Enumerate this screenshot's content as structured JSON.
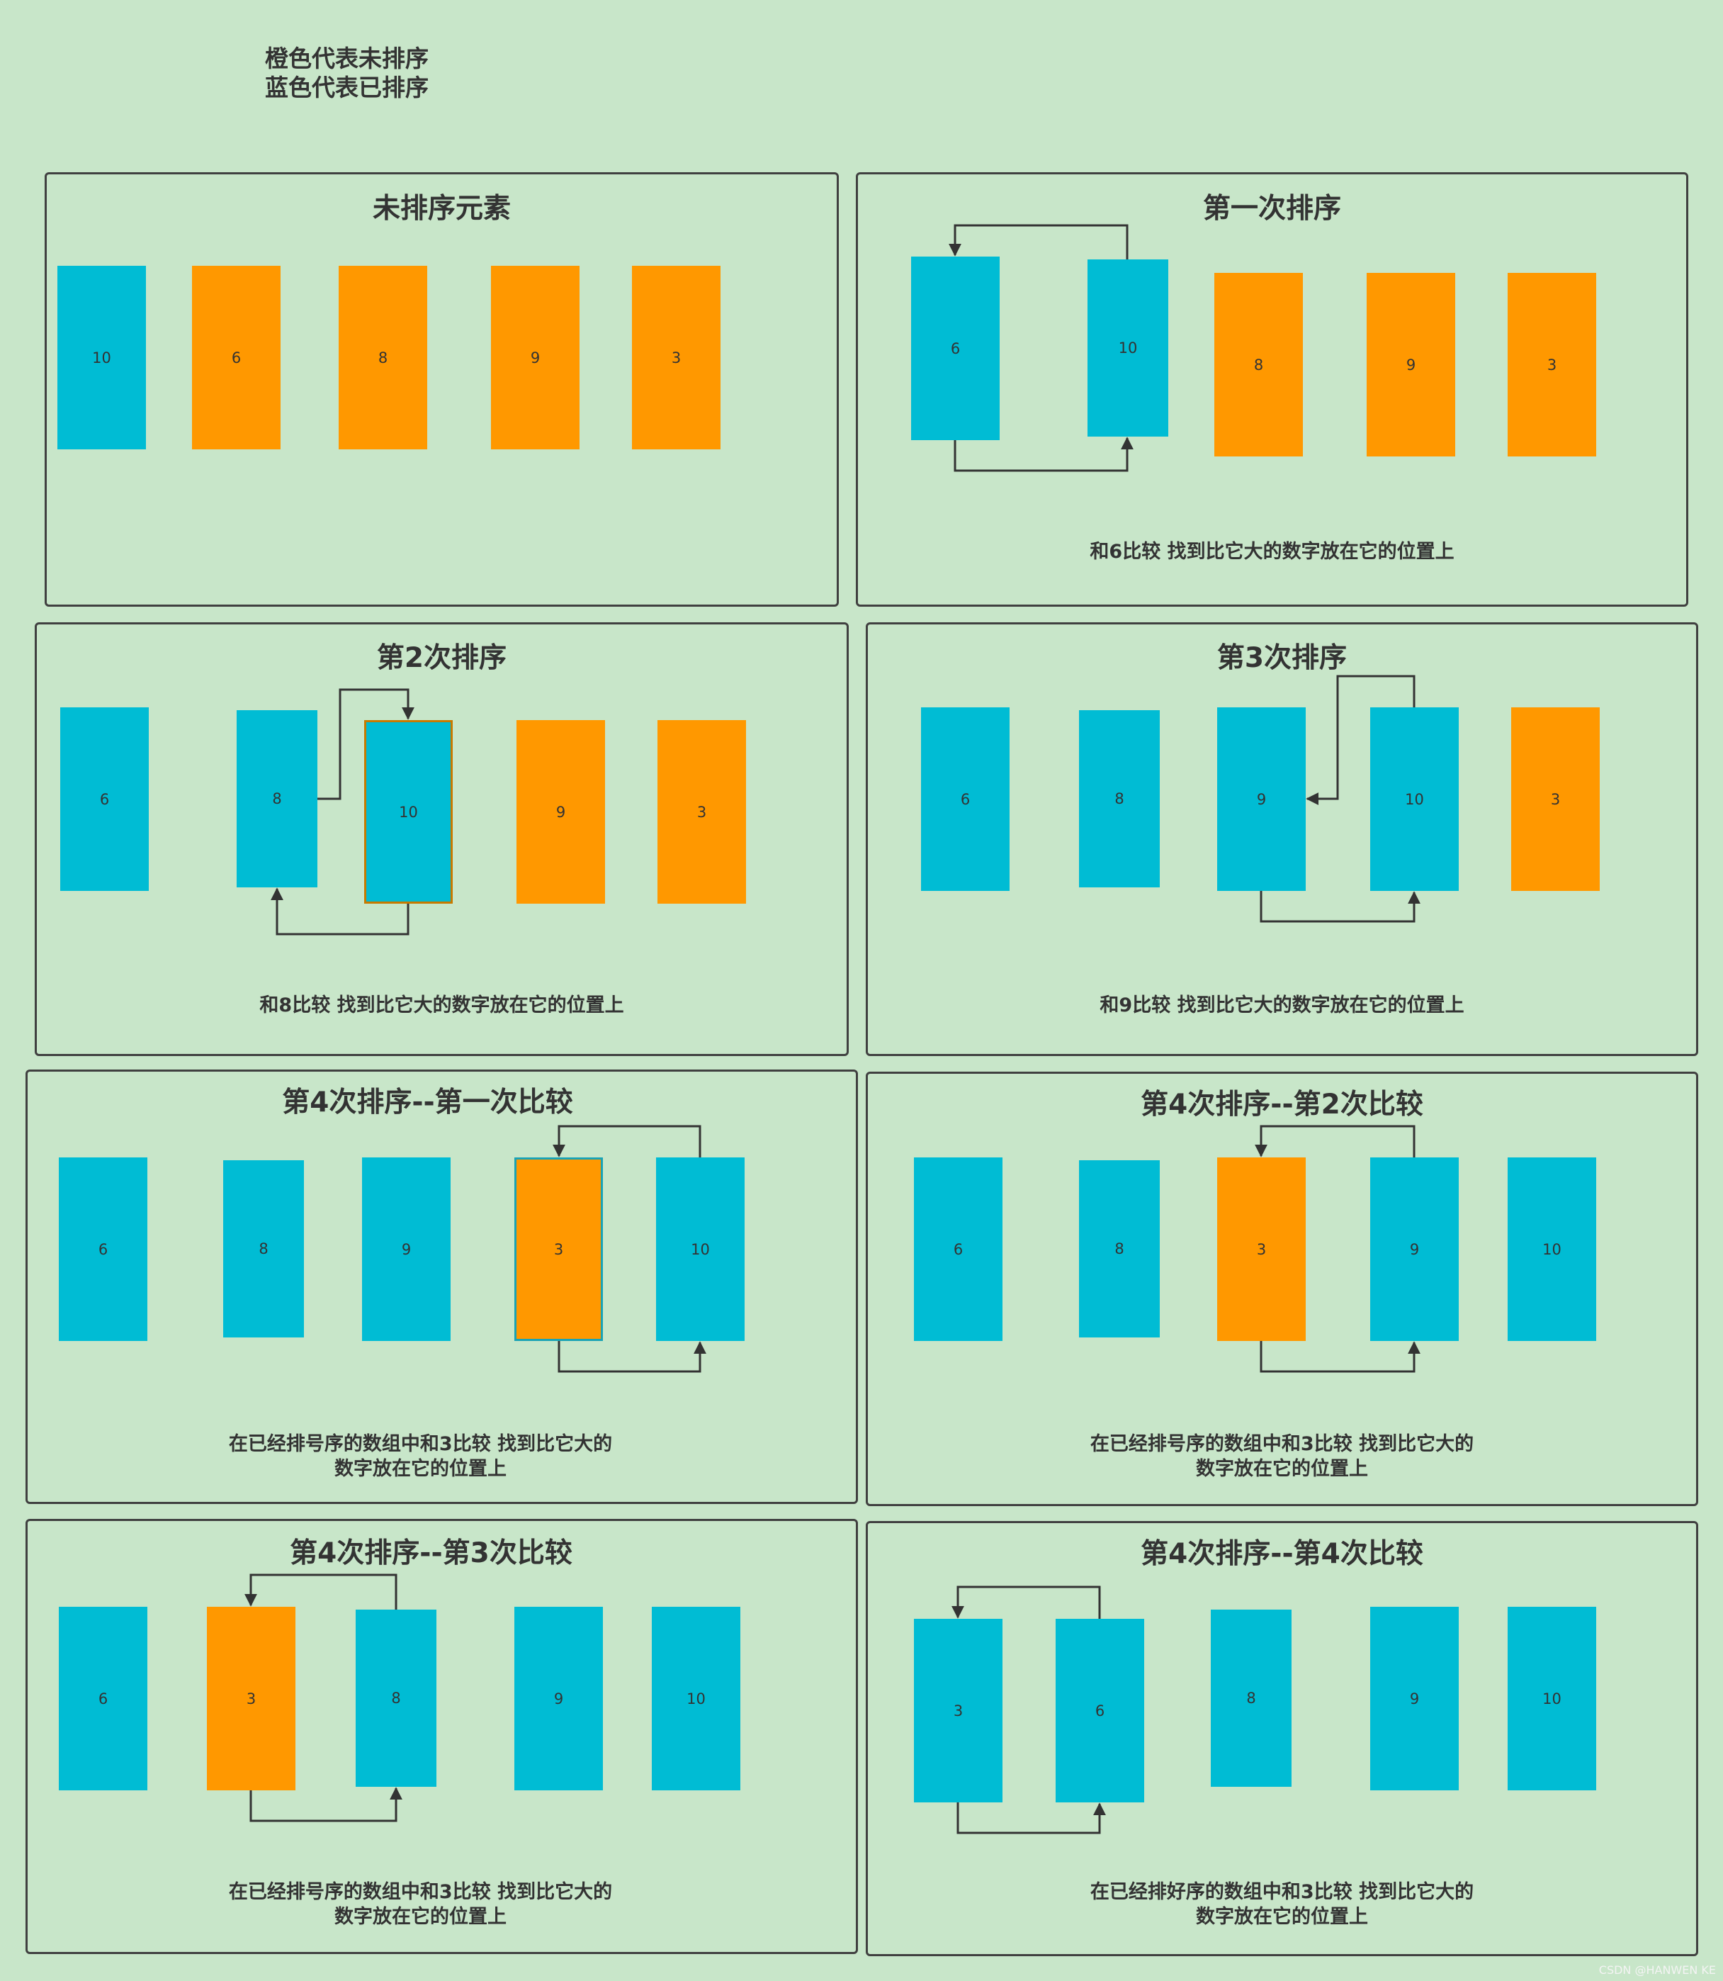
{
  "legend": {
    "line1": "橙色代表未排序",
    "line2": "蓝色代表已排序"
  },
  "colors": {
    "background": "#c8e6c9",
    "sorted": "#00bcd4",
    "unsorted": "#ff9800",
    "border": "#404040"
  },
  "panels": [
    {
      "title": "未排序元素",
      "caption": "",
      "boxes": [
        {
          "label": "10",
          "state": "sorted"
        },
        {
          "label": "6",
          "state": "unsorted"
        },
        {
          "label": "8",
          "state": "unsorted"
        },
        {
          "label": "9",
          "state": "unsorted"
        },
        {
          "label": "3",
          "state": "unsorted"
        }
      ]
    },
    {
      "title": "第一次排序",
      "caption": "和6比较 找到比它大的数字放在它的位置上",
      "boxes": [
        {
          "label": "6",
          "state": "sorted"
        },
        {
          "label": "10",
          "state": "sorted"
        },
        {
          "label": "8",
          "state": "unsorted"
        },
        {
          "label": "9",
          "state": "unsorted"
        },
        {
          "label": "3",
          "state": "unsorted"
        }
      ]
    },
    {
      "title": "第2次排序",
      "caption": "和8比较 找到比它大的数字放在它的位置上",
      "boxes": [
        {
          "label": "6",
          "state": "sorted"
        },
        {
          "label": "8",
          "state": "sorted"
        },
        {
          "label": "10",
          "state": "sorted"
        },
        {
          "label": "9",
          "state": "unsorted"
        },
        {
          "label": "3",
          "state": "unsorted"
        }
      ]
    },
    {
      "title": "第3次排序",
      "caption": "和9比较 找到比它大的数字放在它的位置上",
      "boxes": [
        {
          "label": "6",
          "state": "sorted"
        },
        {
          "label": "8",
          "state": "sorted"
        },
        {
          "label": "9",
          "state": "sorted"
        },
        {
          "label": "10",
          "state": "sorted"
        },
        {
          "label": "3",
          "state": "unsorted"
        }
      ]
    },
    {
      "title": "第4次排序--第一次比较",
      "caption_line1": "在已经排号序的数组中和3比较 找到比它大的",
      "caption_line2": "数字放在它的位置上",
      "boxes": [
        {
          "label": "6",
          "state": "sorted"
        },
        {
          "label": "8",
          "state": "sorted"
        },
        {
          "label": "9",
          "state": "sorted"
        },
        {
          "label": "3",
          "state": "unsorted"
        },
        {
          "label": "10",
          "state": "sorted"
        }
      ]
    },
    {
      "title": "第4次排序--第2次比较",
      "caption_line1": "在已经排号序的数组中和3比较 找到比它大的",
      "caption_line2": "数字放在它的位置上",
      "boxes": [
        {
          "label": "6",
          "state": "sorted"
        },
        {
          "label": "8",
          "state": "sorted"
        },
        {
          "label": "3",
          "state": "unsorted"
        },
        {
          "label": "9",
          "state": "sorted"
        },
        {
          "label": "10",
          "state": "sorted"
        }
      ]
    },
    {
      "title": "第4次排序--第3次比较",
      "caption_line1": "在已经排号序的数组中和3比较 找到比它大的",
      "caption_line2": "数字放在它的位置上",
      "boxes": [
        {
          "label": "6",
          "state": "sorted"
        },
        {
          "label": "3",
          "state": "unsorted"
        },
        {
          "label": "8",
          "state": "sorted"
        },
        {
          "label": "9",
          "state": "sorted"
        },
        {
          "label": "10",
          "state": "sorted"
        }
      ]
    },
    {
      "title": "第4次排序--第4次比较",
      "caption_line1": "在已经排好序的数组中和3比较 找到比它大的",
      "caption_line2": "数字放在它的位置上",
      "boxes": [
        {
          "label": "3",
          "state": "sorted"
        },
        {
          "label": "6",
          "state": "sorted"
        },
        {
          "label": "8",
          "state": "sorted"
        },
        {
          "label": "9",
          "state": "sorted"
        },
        {
          "label": "10",
          "state": "sorted"
        }
      ]
    }
  ],
  "watermark": "CSDN @HANWEN KE"
}
